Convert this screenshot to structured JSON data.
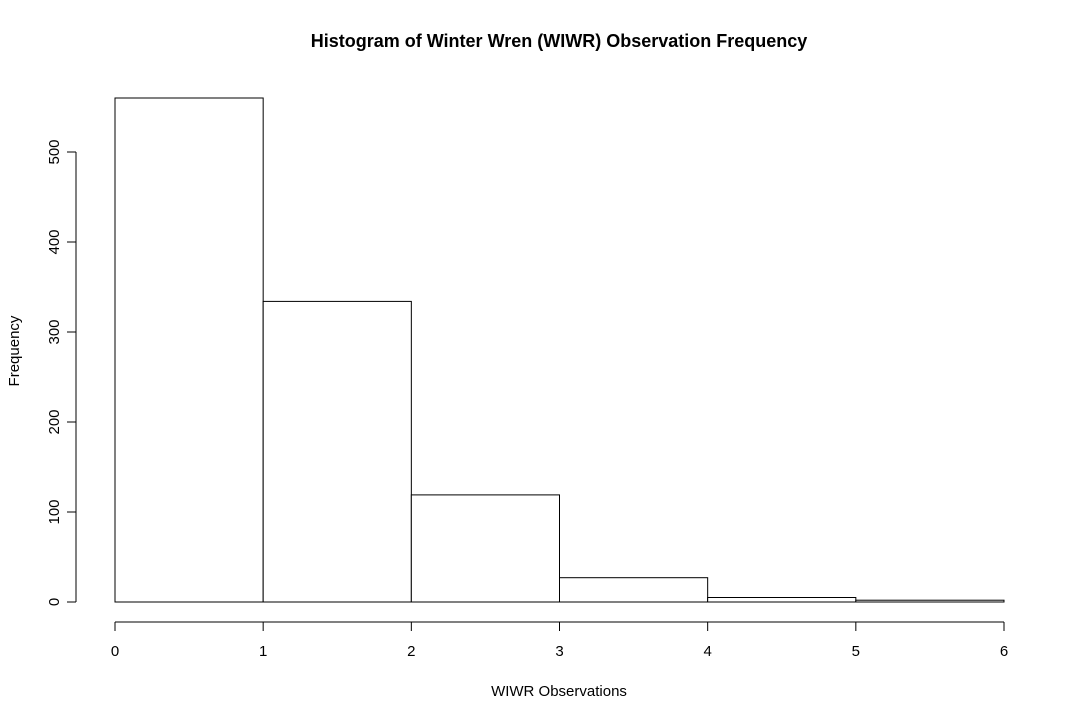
{
  "chart_data": {
    "type": "bar",
    "title": "Histogram of Winter Wren (WIWR) Observation Frequency",
    "xlabel": "WIWR Observations",
    "ylabel": "Frequency",
    "xlim": [
      0,
      6
    ],
    "ylim": [
      0,
      560
    ],
    "x_ticks": [
      0,
      1,
      2,
      3,
      4,
      5,
      6
    ],
    "y_ticks": [
      0,
      100,
      200,
      300,
      400,
      500
    ],
    "bins": [
      {
        "start": 0,
        "end": 1,
        "value": 560
      },
      {
        "start": 1,
        "end": 2,
        "value": 334
      },
      {
        "start": 2,
        "end": 3,
        "value": 119
      },
      {
        "start": 3,
        "end": 4,
        "value": 27
      },
      {
        "start": 4,
        "end": 5,
        "value": 5
      },
      {
        "start": 5,
        "end": 6,
        "value": 2
      }
    ],
    "grid": false,
    "legend": "none",
    "colors": {
      "bar_fill": "#ffffff",
      "bar_stroke": "#000000"
    }
  }
}
